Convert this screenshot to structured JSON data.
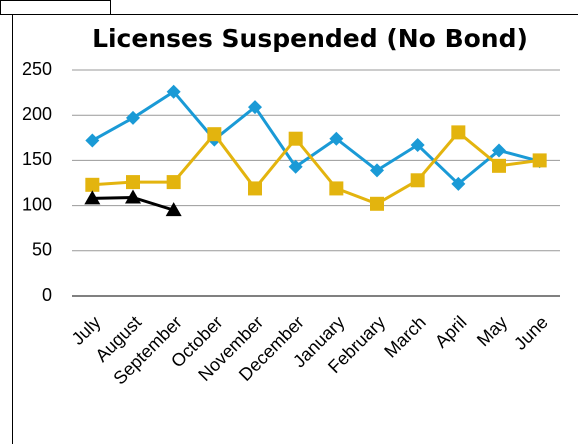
{
  "chart_data": {
    "type": "line",
    "title": "Licenses Suspended (No Bond)",
    "categories": [
      "July",
      "August",
      "September",
      "October",
      "November",
      "December",
      "January",
      "February",
      "March",
      "April",
      "May",
      "June"
    ],
    "series": [
      {
        "color": "#1a9ad6",
        "marker": "diamond",
        "values": [
          172,
          197,
          226,
          173,
          209,
          143,
          174,
          139,
          167,
          124,
          161,
          149
        ]
      },
      {
        "color": "#e3b40e",
        "marker": "square",
        "values": [
          123,
          126,
          126,
          179,
          119,
          174,
          119,
          102,
          128,
          181,
          144,
          150
        ]
      },
      {
        "color": "#000000",
        "marker": "triangle",
        "values": [
          108,
          109,
          95,
          null,
          null,
          null,
          null,
          null,
          null,
          null,
          null,
          null
        ]
      }
    ],
    "ylim": [
      0,
      250
    ],
    "yticks": [
      0,
      50,
      100,
      150,
      200,
      250
    ],
    "grid": true
  }
}
